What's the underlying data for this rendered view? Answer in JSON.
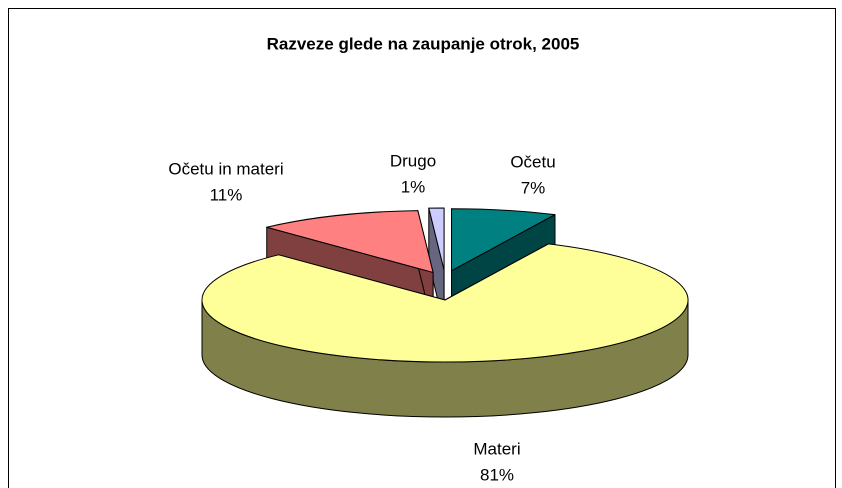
{
  "chart_data": {
    "type": "pie",
    "title": "Razveze glede na zaupanje otrok, 2005",
    "categories": [
      "Očetu",
      "Materi",
      "Očetu in materi",
      "Drugo"
    ],
    "values": [
      7,
      81,
      11,
      1
    ],
    "value_labels": [
      "7%",
      "81%",
      "11%",
      "1%"
    ],
    "colors": [
      "#008080",
      "#ffff99",
      "#ff8080",
      "#ccccff"
    ],
    "side_colors": [
      "#004545",
      "#80804a",
      "#804040",
      "#666680"
    ],
    "exploded": [
      true,
      false,
      true,
      true
    ]
  }
}
